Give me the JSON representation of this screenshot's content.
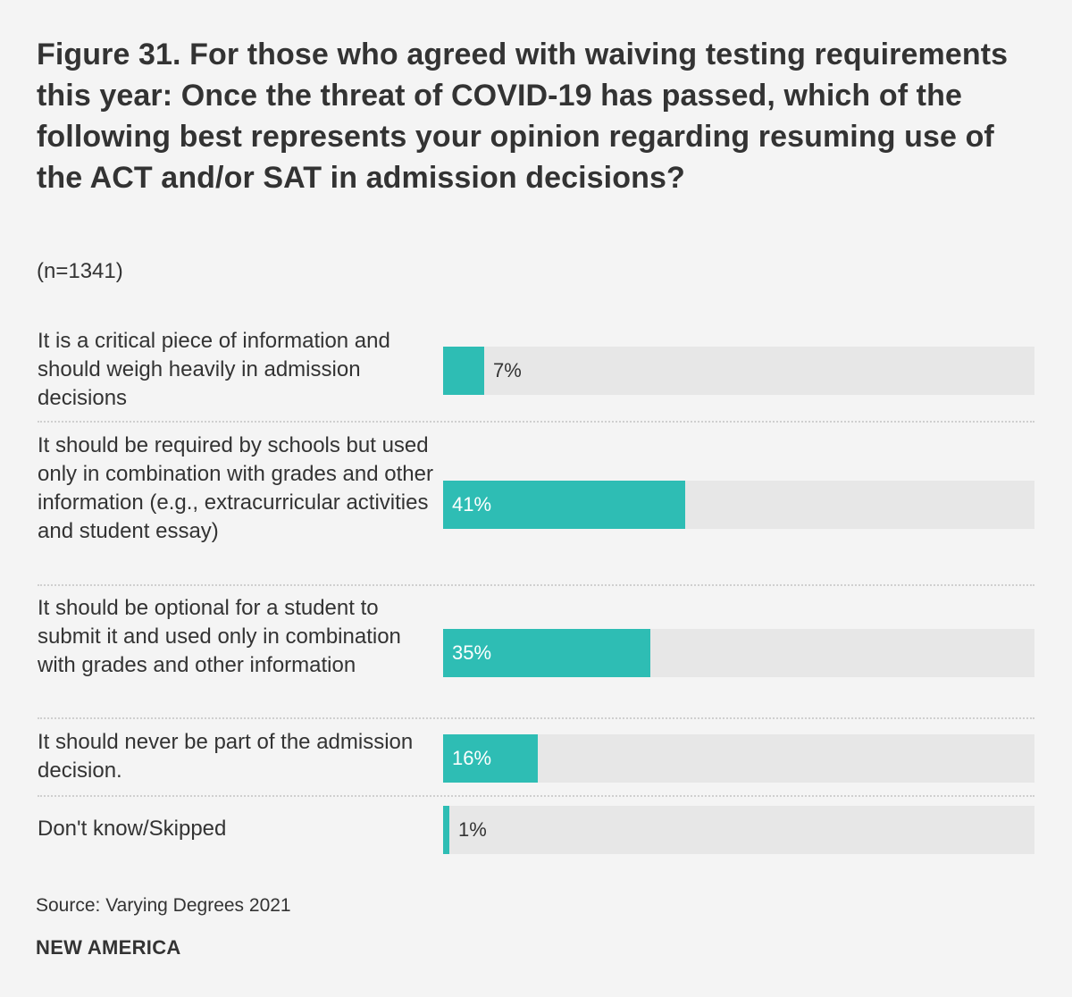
{
  "header": {
    "title": "Figure 31. For those who agreed with waiving testing requirements this year: Once the threat of COVID-19 has passed, which of the following best represents your opinion regarding resuming use of the ACT and/or SAT in admission decisions?",
    "subtitle": "(n=1341)"
  },
  "footer": {
    "source": "Source: Varying Degrees 2021",
    "logo": "NEW AMERICA"
  },
  "colors": {
    "bar": "#2ebdb4",
    "track": "#e7e7e7",
    "label_inside": "#ffffff",
    "label_outside": "#333333"
  },
  "chart_data": {
    "type": "bar",
    "orientation": "horizontal",
    "xlim": [
      0,
      100
    ],
    "categories": [
      "It is a critical piece of information and should weigh heavily in admission decisions",
      "It should be required by schools but used only in combination with grades and other information (e.g., extracurricular activities and student essay)",
      "It should be optional for a student to submit it and used only in combination with grades and other information",
      "It should never be part of the admission decision.",
      "Don't know/Skipped"
    ],
    "values": [
      7,
      41,
      35,
      16,
      1
    ],
    "value_labels": [
      "7%",
      "41%",
      "35%",
      "16%",
      "1%"
    ]
  }
}
